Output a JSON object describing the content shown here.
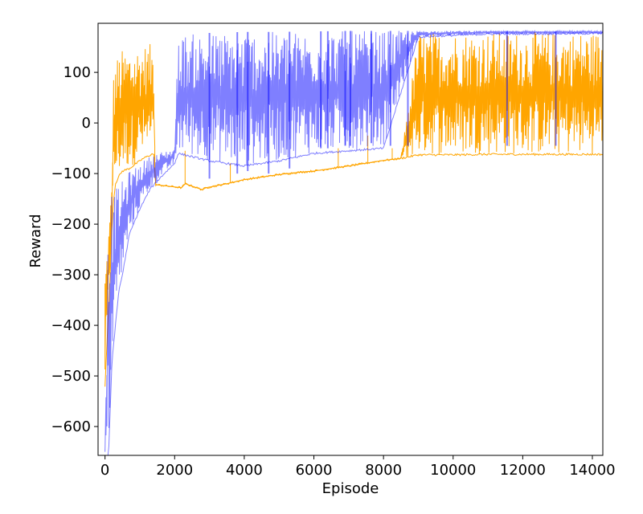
{
  "chart_data": {
    "type": "line",
    "title": "",
    "xlabel": "Episode",
    "ylabel": "Reward",
    "xlim": [
      -200,
      14300
    ],
    "ylim": [
      -657,
      197
    ],
    "grid": false,
    "x_ticks": [
      0,
      2000,
      4000,
      6000,
      8000,
      10000,
      12000,
      14000
    ],
    "x_tick_labels": [
      "0",
      "2000",
      "4000",
      "6000",
      "8000",
      "10000",
      "12000",
      "14000"
    ],
    "y_ticks": [
      -600,
      -500,
      -400,
      -300,
      -200,
      -100,
      0,
      100
    ],
    "y_tick_labels": [
      "−600",
      "−500",
      "−400",
      "−300",
      "−200",
      "−100",
      "0",
      "100"
    ],
    "series": [
      {
        "name": "orange",
        "color": "#ffa500",
        "opacity": 1.0,
        "envelope": {
          "x": [
            0,
            80,
            150,
            200,
            250,
            300,
            400,
            500,
            700,
            900,
            1100,
            1400,
            1450,
            2200,
            2300,
            2800,
            2900,
            3500,
            4000,
            4500,
            5000,
            5500,
            6000,
            7000,
            8000,
            8500,
            9000,
            10000,
            11000,
            12000,
            13000,
            14000,
            14300
          ],
          "upper": [
            -280,
            -230,
            -170,
            -110,
            110,
            125,
            138,
            145,
            150,
            152,
            155,
            157,
            -122,
            -128,
            -120,
            -132,
            -128,
            -120,
            -112,
            -107,
            -102,
            -98,
            -95,
            -85,
            -74,
            -70,
            180,
            180,
            180,
            180,
            180,
            180,
            180
          ],
          "lower": [
            -520,
            -400,
            -300,
            -200,
            -150,
            -120,
            -105,
            -95,
            -90,
            -80,
            -70,
            -60,
            -122,
            -128,
            -120,
            -132,
            -128,
            -120,
            -112,
            -107,
            -102,
            -98,
            -95,
            -85,
            -74,
            -70,
            -63,
            -63,
            -62,
            -62,
            -62,
            -62,
            -62
          ]
        },
        "spikes": [
          [
            2300,
            -55
          ],
          [
            3600,
            -80
          ],
          [
            5950,
            -95
          ],
          [
            6700,
            -50
          ],
          [
            7550,
            -25
          ],
          [
            8250,
            -50
          ],
          [
            8700,
            -40
          ]
        ]
      },
      {
        "name": "blue",
        "color": "#0000ff",
        "opacity": 0.5,
        "envelope": {
          "x": [
            0,
            100,
            200,
            300,
            400,
            500,
            700,
            1000,
            1300,
            1700,
            2000,
            2100,
            3000,
            4000,
            5000,
            6000,
            7000,
            8000,
            9000,
            11000,
            14300
          ],
          "upper": [
            -640,
            -150,
            -140,
            -130,
            -125,
            -115,
            -95,
            -80,
            -65,
            -55,
            -50,
            175,
            178,
            180,
            180,
            181,
            182,
            182,
            182,
            182,
            182
          ],
          "lower": [
            -657,
            -660,
            -470,
            -400,
            -330,
            -300,
            -220,
            -170,
            -130,
            -100,
            -80,
            -60,
            -75,
            -85,
            -75,
            -60,
            -55,
            -50,
            170,
            176,
            177
          ]
        },
        "dips": [
          [
            3000,
            -110
          ],
          [
            3800,
            -100
          ],
          [
            4100,
            -95
          ],
          [
            4700,
            -100
          ],
          [
            5300,
            -90
          ],
          [
            6200,
            -50
          ],
          [
            6400,
            -50
          ],
          [
            6900,
            -45
          ],
          [
            7050,
            -45
          ],
          [
            7650,
            -40
          ],
          [
            8200,
            -45
          ],
          [
            8700,
            -45
          ],
          [
            11550,
            -45
          ],
          [
            12950,
            -45
          ]
        ]
      }
    ]
  }
}
